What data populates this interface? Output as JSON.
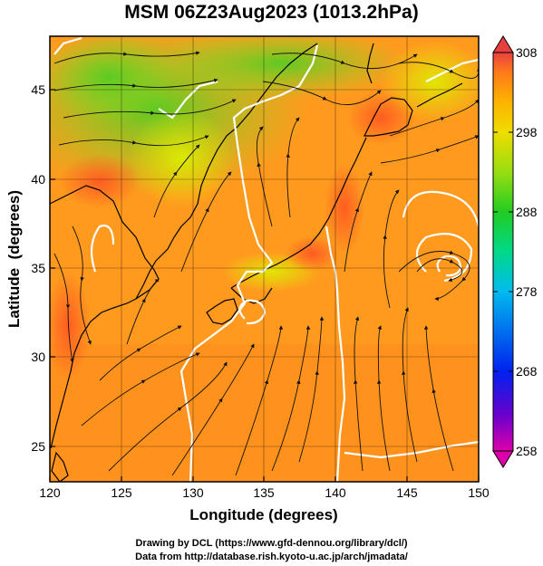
{
  "chart_data": {
    "type": "heatmap",
    "title": "MSM 06Z23Aug2023 (1013.2hPa)",
    "xlabel": "Longitude (degrees)",
    "ylabel": "Latitude  (degrees)",
    "xlim": [
      120,
      150
    ],
    "ylim": [
      22.5,
      47.5
    ],
    "xticks": [
      "120",
      "125",
      "130",
      "135",
      "140",
      "145",
      "150"
    ],
    "yticks": [
      "25",
      "30",
      "35",
      "40",
      "45"
    ],
    "colorbar": {
      "ticks": [
        "258",
        "268",
        "278",
        "288",
        "298",
        "308"
      ],
      "range": [
        258,
        308
      ],
      "colors": [
        "#dd00aa",
        "#3b00cc",
        "#0044ff",
        "#00aaff",
        "#00e0c0",
        "#00cc44",
        "#66dd22",
        "#ddee00",
        "#ffc000",
        "#ff8c1a",
        "#ff5a1a",
        "#e03030"
      ]
    },
    "grid": true,
    "overlays": [
      "streamlines",
      "white contour lines"
    ]
  },
  "credits": {
    "line1": "Drawing by DCL (https://www.gfd-dennou.org/library/dcl/)",
    "line2": "Data from http://database.rish.kyoto-u.ac.jp/arch/jmadata/"
  }
}
